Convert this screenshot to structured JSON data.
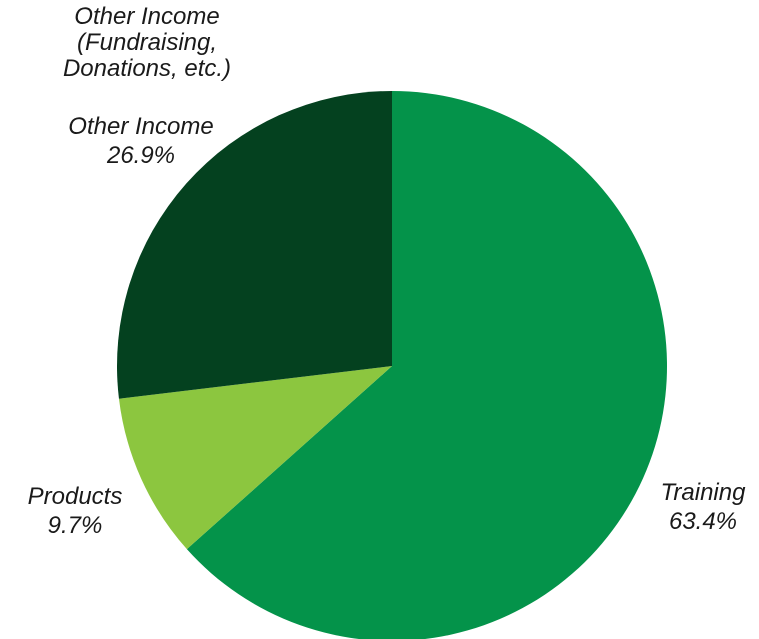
{
  "chart_data": {
    "type": "pie",
    "title": "",
    "start_angle_deg": 0,
    "direction": "clockwise",
    "slices": [
      {
        "name": "Training",
        "value": 63.4,
        "value_label": "63.4%",
        "color": "#04934a"
      },
      {
        "name": "Products",
        "value": 9.7,
        "value_label": "9.7%",
        "color": "#8cc63f"
      },
      {
        "name": "Other Income",
        "value": 26.9,
        "value_label": "26.9%",
        "color": "#04411f"
      }
    ],
    "annotation": [
      "Other Income",
      "(Fundraising,",
      "Donations, etc.)"
    ]
  }
}
